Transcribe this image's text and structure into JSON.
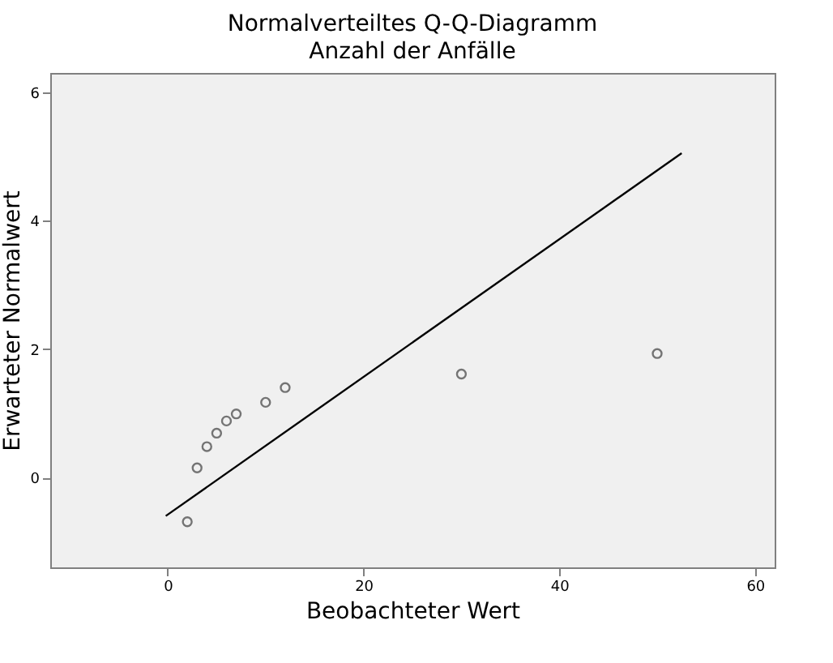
{
  "chart_data": {
    "type": "scatter",
    "title": "Normalverteiltes Q-Q-Diagramm",
    "subtitle": "Anzahl der Anfälle",
    "xlabel": "Beobachteter Wert",
    "ylabel": "Erwarteter Normalwert",
    "series": [
      {
        "color": "#404040",
        "marker": "circle",
        "x": [
          2,
          3,
          4,
          5,
          6,
          7,
          10,
          12,
          30,
          50
        ],
        "values": [
          -0.69,
          0.15,
          0.48,
          0.69,
          0.88,
          0.99,
          1.17,
          1.4,
          1.61,
          1.93
        ]
      },
      {
        "type": "line",
        "color": "#000000",
        "line_style": "solid",
        "x": [
          -0.2,
          52.5
        ],
        "values": [
          -0.6,
          5.05
        ]
      }
    ],
    "xlim": [
      -12,
      62
    ],
    "ylim": [
      -1.4,
      6.3
    ],
    "xticks": [
      0,
      20,
      40,
      60
    ],
    "yticks": [
      0,
      2,
      4,
      6
    ],
    "grid": false
  }
}
